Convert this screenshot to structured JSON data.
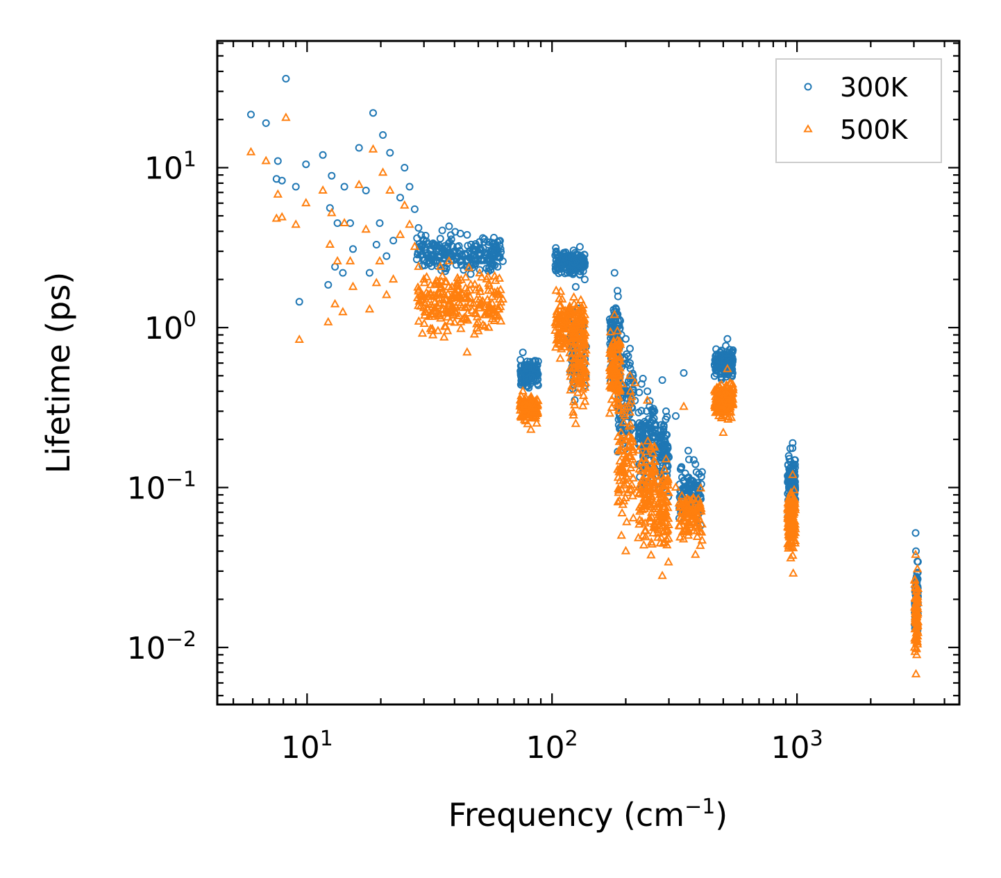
{
  "chart_data": {
    "type": "scatter",
    "title": "",
    "xlabel": "Frequency (cm",
    "xlabel_sup": "−1",
    "xlabel_end": ")",
    "ylabel": "Lifetime (ps)",
    "xscale": "log",
    "yscale": "log",
    "xlim": [
      4.3,
      4600
    ],
    "ylim": [
      0.0044,
      62
    ],
    "x_ticks": [
      {
        "value": 10,
        "base": "10",
        "exp": "1"
      },
      {
        "value": 100,
        "base": "10",
        "exp": "2"
      },
      {
        "value": 1000,
        "base": "10",
        "exp": "3"
      }
    ],
    "y_ticks": [
      {
        "value": 0.01,
        "base": "10",
        "exp": "−2"
      },
      {
        "value": 0.1,
        "base": "10",
        "exp": "−1"
      },
      {
        "value": 1,
        "base": "10",
        "exp": "0"
      },
      {
        "value": 10,
        "base": "10",
        "exp": "1"
      }
    ],
    "legend_position": "top-right",
    "series": [
      {
        "name": "300K",
        "marker": "circle",
        "color": "#1f77b4",
        "points": [
          [
            5.9,
            21.5
          ],
          [
            6.8,
            19
          ],
          [
            7.5,
            8.5
          ],
          [
            7.6,
            11
          ],
          [
            7.9,
            8.3
          ],
          [
            8.2,
            36
          ],
          [
            9,
            7.6
          ],
          [
            9.3,
            1.45
          ],
          [
            9.9,
            10.5
          ],
          [
            11.6,
            12
          ],
          [
            12.2,
            1.85
          ],
          [
            12.4,
            5.6
          ],
          [
            12.6,
            8.9
          ],
          [
            13,
            2.4
          ],
          [
            13.3,
            4.5
          ],
          [
            14,
            2.2
          ],
          [
            14.2,
            7.6
          ],
          [
            15,
            4.5
          ],
          [
            15.4,
            3.1
          ],
          [
            16.3,
            13.3
          ],
          [
            17.4,
            7.2
          ],
          [
            18,
            2.2
          ],
          [
            18.6,
            22
          ],
          [
            19.2,
            3.3
          ],
          [
            19.8,
            4.5
          ],
          [
            20.4,
            16
          ],
          [
            21.1,
            2.8
          ],
          [
            21.8,
            12.4
          ],
          [
            22.5,
            3.5
          ],
          [
            24,
            6.5
          ],
          [
            25,
            10
          ],
          [
            26.2,
            7.6
          ],
          [
            27.5,
            5.5
          ],
          [
            28.5,
            4.2
          ],
          [
            30,
            3.5
          ],
          [
            32,
            2.8
          ],
          [
            35,
            3.6
          ],
          [
            38,
            4.3
          ],
          [
            41,
            3.2
          ],
          [
            45,
            3.8
          ],
          [
            50,
            2.9
          ],
          [
            55,
            3.3
          ],
          [
            60,
            2.4
          ],
          [
            63,
            2.6
          ],
          [
            76,
            0.7
          ],
          [
            78,
            0.55
          ],
          [
            82,
            0.48
          ],
          [
            85,
            0.62
          ],
          [
            104,
            3.0
          ],
          [
            110,
            2.6
          ],
          [
            118,
            2.2
          ],
          [
            125,
            1.8
          ],
          [
            130,
            3.2
          ],
          [
            136,
            2.0
          ],
          [
            180,
            2.2
          ],
          [
            185,
            1.7
          ],
          [
            192,
            0.9
          ],
          [
            200,
            0.85
          ],
          [
            208,
            0.6
          ],
          [
            218,
            0.35
          ],
          [
            235,
            0.48
          ],
          [
            245,
            0.4
          ],
          [
            262,
            0.3
          ],
          [
            282,
            0.47
          ],
          [
            292,
            0.3
          ],
          [
            320,
            0.28
          ],
          [
            345,
            0.52
          ],
          [
            360,
            0.17
          ],
          [
            385,
            0.14
          ],
          [
            480,
            0.62
          ],
          [
            500,
            0.55
          ],
          [
            520,
            0.85
          ],
          [
            540,
            0.7
          ],
          [
            960,
            0.19
          ],
          [
            965,
            0.12
          ],
          [
            3050,
            0.052
          ],
          [
            3060,
            0.04
          ]
        ],
        "clusters": [
          {
            "x": [
              28,
              62
            ],
            "y": [
              2.0,
              4.3
            ],
            "n": 220
          },
          {
            "x": [
              74,
              88
            ],
            "y": [
              0.4,
              0.65
            ],
            "n": 120
          },
          {
            "x": [
              103,
              137
            ],
            "y": [
              2.0,
              3.2
            ],
            "n": 150
          },
          {
            "x": [
              118,
              138
            ],
            "y": [
              0.3,
              1.6
            ],
            "n": 80
          },
          {
            "x": [
              172,
              190
            ],
            "y": [
              0.4,
              1.8
            ],
            "n": 100
          },
          {
            "x": [
              185,
              215
            ],
            "y": [
              0.12,
              0.95
            ],
            "n": 90
          },
          {
            "x": [
              225,
              265
            ],
            "y": [
              0.07,
              0.5
            ],
            "n": 110
          },
          {
            "x": [
              270,
              300
            ],
            "y": [
              0.08,
              0.32
            ],
            "n": 80
          },
          {
            "x": [
              330,
              410
            ],
            "y": [
              0.05,
              0.18
            ],
            "n": 100
          },
          {
            "x": [
              460,
              550
            ],
            "y": [
              0.45,
              0.8
            ],
            "n": 140
          },
          {
            "x": [
              915,
              985
            ],
            "y": [
              0.06,
              0.19
            ],
            "n": 120
          },
          {
            "x": [
              3020,
              3120
            ],
            "y": [
              0.01,
              0.04
            ],
            "n": 80
          }
        ]
      },
      {
        "name": "500K",
        "marker": "triangle",
        "color": "#ff7f0e",
        "points": [
          [
            5.9,
            12.5
          ],
          [
            6.8,
            11
          ],
          [
            7.5,
            4.8
          ],
          [
            7.6,
            6.8
          ],
          [
            7.9,
            4.9
          ],
          [
            8.2,
            20.5
          ],
          [
            9,
            4.4
          ],
          [
            9.3,
            0.84
          ],
          [
            9.9,
            6
          ],
          [
            11.6,
            7.2
          ],
          [
            12.2,
            1.08
          ],
          [
            12.4,
            3.3
          ],
          [
            12.6,
            5.2
          ],
          [
            13,
            1.4
          ],
          [
            13.3,
            2.6
          ],
          [
            14,
            1.25
          ],
          [
            14.2,
            4.5
          ],
          [
            15,
            2.6
          ],
          [
            15.4,
            1.8
          ],
          [
            16.3,
            7.8
          ],
          [
            17.4,
            4.1
          ],
          [
            18,
            1.3
          ],
          [
            18.6,
            13
          ],
          [
            19.2,
            1.9
          ],
          [
            19.8,
            2.6
          ],
          [
            20.4,
            9.3
          ],
          [
            21.1,
            1.6
          ],
          [
            21.8,
            7.2
          ],
          [
            22.5,
            2.0
          ],
          [
            24,
            3.8
          ],
          [
            25,
            5.8
          ],
          [
            26.2,
            4.4
          ],
          [
            27.5,
            3.2
          ],
          [
            28.5,
            2.4
          ],
          [
            30,
            2.0
          ],
          [
            32,
            1.6
          ],
          [
            35,
            2.4
          ],
          [
            38,
            2.6
          ],
          [
            41,
            1.9
          ],
          [
            45,
            0.7
          ],
          [
            50,
            0.95
          ],
          [
            55,
            1.7
          ],
          [
            60,
            1.3
          ],
          [
            63,
            1.5
          ],
          [
            76,
            0.4
          ],
          [
            78,
            0.26
          ],
          [
            82,
            0.23
          ],
          [
            85,
            0.33
          ],
          [
            104,
            1.7
          ],
          [
            110,
            1.5
          ],
          [
            118,
            1.3
          ],
          [
            125,
            0.25
          ],
          [
            130,
            0.9
          ],
          [
            136,
            1.2
          ],
          [
            180,
            1.2
          ],
          [
            185,
            0.95
          ],
          [
            192,
            0.05
          ],
          [
            200,
            0.04
          ],
          [
            208,
            0.5
          ],
          [
            218,
            0.45
          ],
          [
            235,
            0.05
          ],
          [
            245,
            0.35
          ],
          [
            262,
            0.18
          ],
          [
            282,
            0.028
          ],
          [
            292,
            0.15
          ],
          [
            320,
            0.1
          ],
          [
            345,
            0.32
          ],
          [
            360,
            0.05
          ],
          [
            385,
            0.038
          ],
          [
            480,
            0.28
          ],
          [
            500,
            0.22
          ],
          [
            520,
            0.55
          ],
          [
            540,
            0.4
          ],
          [
            960,
            0.12
          ],
          [
            965,
            0.029
          ],
          [
            3050,
            0.038
          ],
          [
            3060,
            0.0068
          ]
        ],
        "clusters": [
          {
            "x": [
              28,
              62
            ],
            "y": [
              0.8,
              2.6
            ],
            "n": 220
          },
          {
            "x": [
              74,
              88
            ],
            "y": [
              0.24,
              0.4
            ],
            "n": 120
          },
          {
            "x": [
              103,
              137
            ],
            "y": [
              0.6,
              1.8
            ],
            "n": 150
          },
          {
            "x": [
              118,
              138
            ],
            "y": [
              0.25,
              1.2
            ],
            "n": 80
          },
          {
            "x": [
              172,
              190
            ],
            "y": [
              0.25,
              1.2
            ],
            "n": 100
          },
          {
            "x": [
              185,
              215
            ],
            "y": [
              0.045,
              0.55
            ],
            "n": 90
          },
          {
            "x": [
              225,
              265
            ],
            "y": [
              0.03,
              0.3
            ],
            "n": 110
          },
          {
            "x": [
              270,
              300
            ],
            "y": [
              0.03,
              0.15
            ],
            "n": 80
          },
          {
            "x": [
              330,
              410
            ],
            "y": [
              0.04,
              0.11
            ],
            "n": 100
          },
          {
            "x": [
              460,
              550
            ],
            "y": [
              0.25,
              0.5
            ],
            "n": 140
          },
          {
            "x": [
              915,
              985
            ],
            "y": [
              0.035,
              0.12
            ],
            "n": 120
          },
          {
            "x": [
              3020,
              3120
            ],
            "y": [
              0.007,
              0.036
            ],
            "n": 80
          }
        ]
      }
    ]
  }
}
